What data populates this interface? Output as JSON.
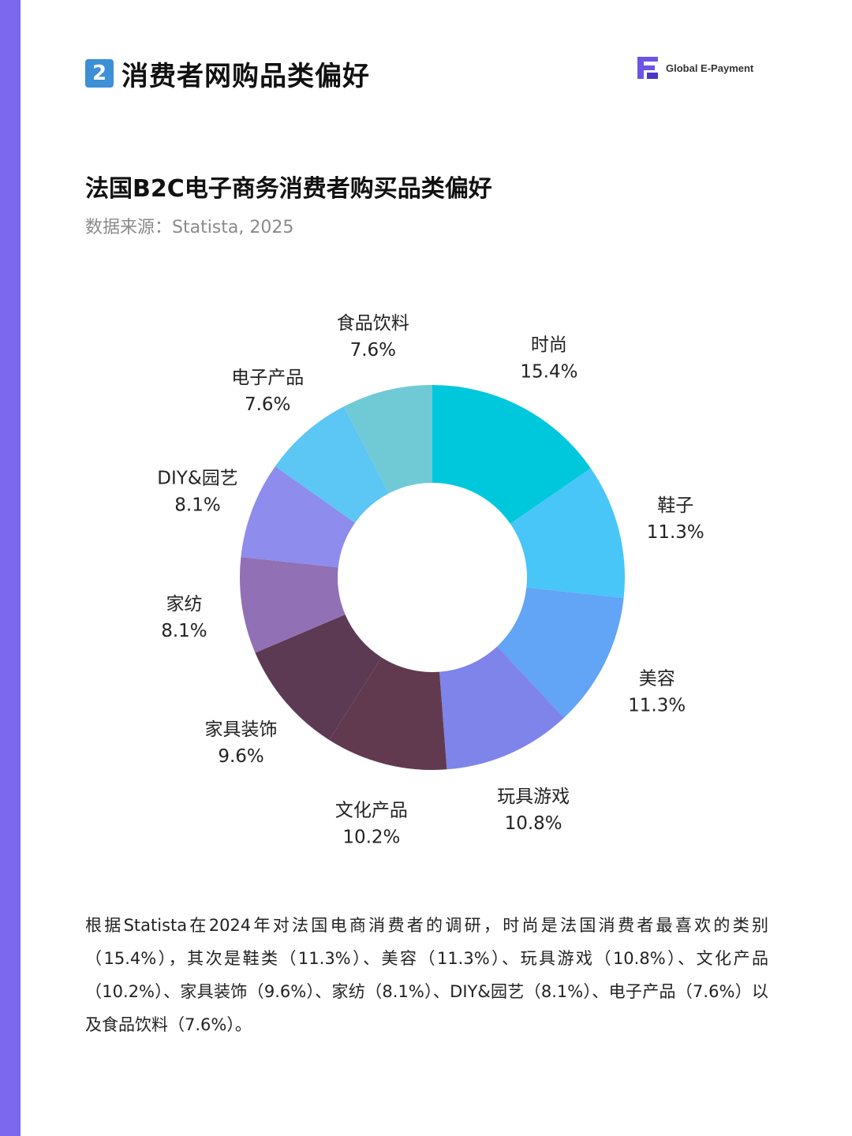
{
  "header": {
    "section_number": "2",
    "section_title": "消费者网购品类偏好",
    "brand_name": "Global E-Payment"
  },
  "chart_title": "法国B2C电子商务消费者购买品类偏好",
  "source": "数据来源：Statista, 2025",
  "chart_data": {
    "type": "pie",
    "donut": true,
    "slices": [
      {
        "label": "时尚",
        "value": 15.4,
        "display": "15.4%",
        "color": "#00c8dc"
      },
      {
        "label": "鞋子",
        "value": 11.3,
        "display": "11.3%",
        "color": "#48c6f8"
      },
      {
        "label": "美容",
        "value": 11.3,
        "display": "11.3%",
        "color": "#62a4f6"
      },
      {
        "label": "玩具游戏",
        "value": 10.8,
        "display": "10.8%",
        "color": "#7e84ea"
      },
      {
        "label": "文化产品",
        "value": 10.2,
        "display": "10.2%",
        "color": "#613a4f"
      },
      {
        "label": "家具装饰",
        "value": 9.6,
        "display": "9.6%",
        "color": "#5d3a54"
      },
      {
        "label": "家纺",
        "value": 8.1,
        "display": "8.1%",
        "color": "#9170b6"
      },
      {
        "label": "DIY&园艺",
        "value": 8.1,
        "display": "8.1%",
        "color": "#8e8cec"
      },
      {
        "label": "电子产品",
        "value": 7.6,
        "display": "7.6%",
        "color": "#5cc6f4"
      },
      {
        "label": "食品饮料",
        "value": 7.6,
        "display": "7.6%",
        "color": "#6fcad6"
      }
    ]
  },
  "summary": "根据Statista在2024年对法国电商消费者的调研，时尚是法国消费者最喜欢的类别（15.4%），其次是鞋类（11.3%）、美容（11.3%）、玩具游戏（10.8%）、文化产品（10.2%）、家具装饰（9.6%）、家纺（8.1%）、DIY&园艺（8.1%）、电子产品（7.6%）以及食品饮料（7.6%）。"
}
